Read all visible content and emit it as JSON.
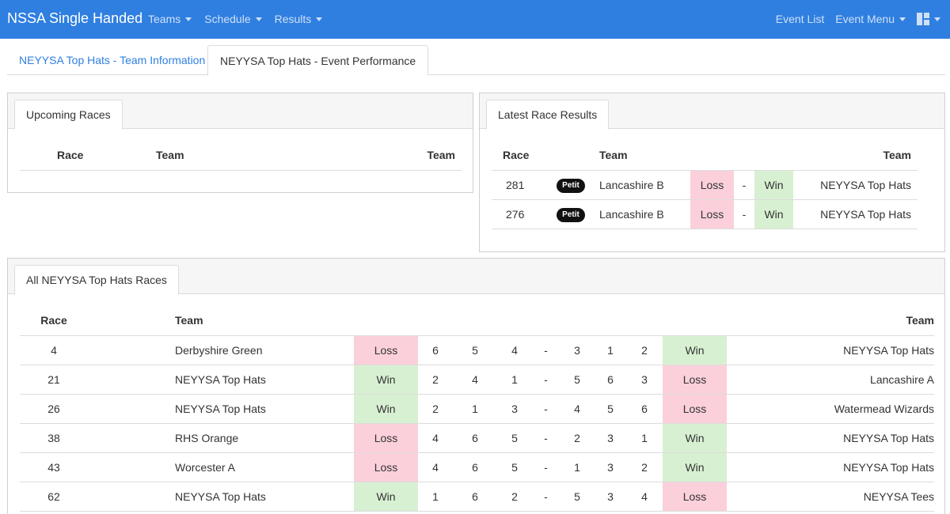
{
  "navbar": {
    "brand": "NSSA Single Handed",
    "left_menu": [
      "Teams",
      "Schedule",
      "Results"
    ],
    "event_list": "Event List",
    "event_menu": "Event Menu"
  },
  "tabs": {
    "team_info": "NEYYSA Top Hats - Team Information",
    "event_performance": "NEYYSA Top Hats - Event Performance"
  },
  "upcoming": {
    "tab": "Upcoming Races",
    "headers": {
      "race": "Race",
      "team1": "Team",
      "team2": "Team"
    }
  },
  "latest": {
    "tab": "Latest Race Results",
    "headers": {
      "race": "Race",
      "team1": "Team",
      "team2": "Team"
    },
    "rows": [
      {
        "race": "281",
        "badge": "Petit",
        "team1": "Lancashire B",
        "res1": "Loss",
        "sep": "-",
        "res2": "Win",
        "team2": "NEYYSA Top Hats"
      },
      {
        "race": "276",
        "badge": "Petit",
        "team1": "Lancashire B",
        "res1": "Loss",
        "sep": "-",
        "res2": "Win",
        "team2": "NEYYSA Top Hats"
      }
    ]
  },
  "all_races": {
    "tab": "All NEYYSA Top Hats Races",
    "headers": {
      "race": "Race",
      "team1": "Team",
      "team2": "Team"
    },
    "rows": [
      {
        "race": "4",
        "team1": "Derbyshire Green",
        "res1": "Loss",
        "s1": "6",
        "s2": "5",
        "s3": "4",
        "sep": "-",
        "s4": "3",
        "s5": "1",
        "s6": "2",
        "res2": "Win",
        "team2": "NEYYSA Top Hats"
      },
      {
        "race": "21",
        "team1": "NEYYSA Top Hats",
        "res1": "Win",
        "s1": "2",
        "s2": "4",
        "s3": "1",
        "sep": "-",
        "s4": "5",
        "s5": "6",
        "s6": "3",
        "res2": "Loss",
        "team2": "Lancashire A"
      },
      {
        "race": "26",
        "team1": "NEYYSA Top Hats",
        "res1": "Win",
        "s1": "2",
        "s2": "1",
        "s3": "3",
        "sep": "-",
        "s4": "4",
        "s5": "5",
        "s6": "6",
        "res2": "Loss",
        "team2": "Watermead Wizards"
      },
      {
        "race": "38",
        "team1": "RHS Orange",
        "res1": "Loss",
        "s1": "4",
        "s2": "6",
        "s3": "5",
        "sep": "-",
        "s4": "2",
        "s5": "3",
        "s6": "1",
        "res2": "Win",
        "team2": "NEYYSA Top Hats"
      },
      {
        "race": "43",
        "team1": "Worcester A",
        "res1": "Loss",
        "s1": "4",
        "s2": "6",
        "s3": "5",
        "sep": "-",
        "s4": "1",
        "s5": "3",
        "s6": "2",
        "res2": "Win",
        "team2": "NEYYSA Top Hats"
      },
      {
        "race": "62",
        "team1": "NEYYSA Top Hats",
        "res1": "Win",
        "s1": "1",
        "s2": "6",
        "s3": "2",
        "sep": "-",
        "s4": "5",
        "s5": "3",
        "s6": "4",
        "res2": "Loss",
        "team2": "NEYYSA Tees"
      }
    ]
  },
  "colors": {
    "navbar": "#2f7fe0",
    "win": "#d8f0d2",
    "loss": "#fbd0db",
    "link": "#2f7fe0"
  },
  "icons": {
    "layout": "layout-grid-icon",
    "dropdown": "caret-down-icon"
  }
}
